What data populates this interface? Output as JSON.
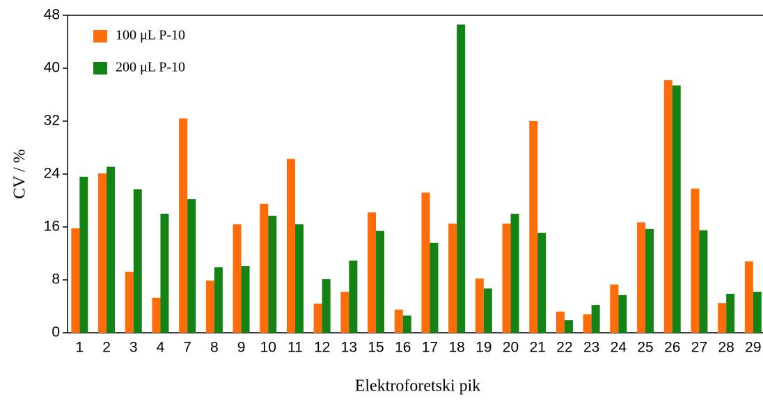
{
  "chart_data": {
    "type": "bar",
    "x_label": "Elektroforetski pik",
    "y_label": "CV / %",
    "categories": [
      "1",
      "2",
      "3",
      "4",
      "7",
      "8",
      "9",
      "10",
      "11",
      "12",
      "13",
      "15",
      "16",
      "17",
      "18",
      "19",
      "20",
      "21",
      "22",
      "23",
      "24",
      "25",
      "26",
      "27",
      "28",
      "29"
    ],
    "series": [
      {
        "name": "100 μL P-10",
        "color": "#ff6d0a",
        "values": [
          15.8,
          24.1,
          9.2,
          5.3,
          32.4,
          7.9,
          16.4,
          19.5,
          26.3,
          4.4,
          6.2,
          18.2,
          3.5,
          21.2,
          16.5,
          8.2,
          16.5,
          32.0,
          3.2,
          2.8,
          7.3,
          16.7,
          38.2,
          21.8,
          4.5,
          10.8
        ]
      },
      {
        "name": "200 μL P-10",
        "color": "#148214",
        "values": [
          23.6,
          25.1,
          21.7,
          18.0,
          20.2,
          9.9,
          10.1,
          17.7,
          16.4,
          8.1,
          10.9,
          15.4,
          2.6,
          13.6,
          46.6,
          6.7,
          18.0,
          15.1,
          1.9,
          4.2,
          5.7,
          15.7,
          37.4,
          15.5,
          5.9,
          6.2
        ]
      }
    ],
    "ylim": [
      0,
      48
    ],
    "yticks": [
      0,
      8,
      16,
      24,
      32,
      40,
      48
    ],
    "grid": false
  }
}
